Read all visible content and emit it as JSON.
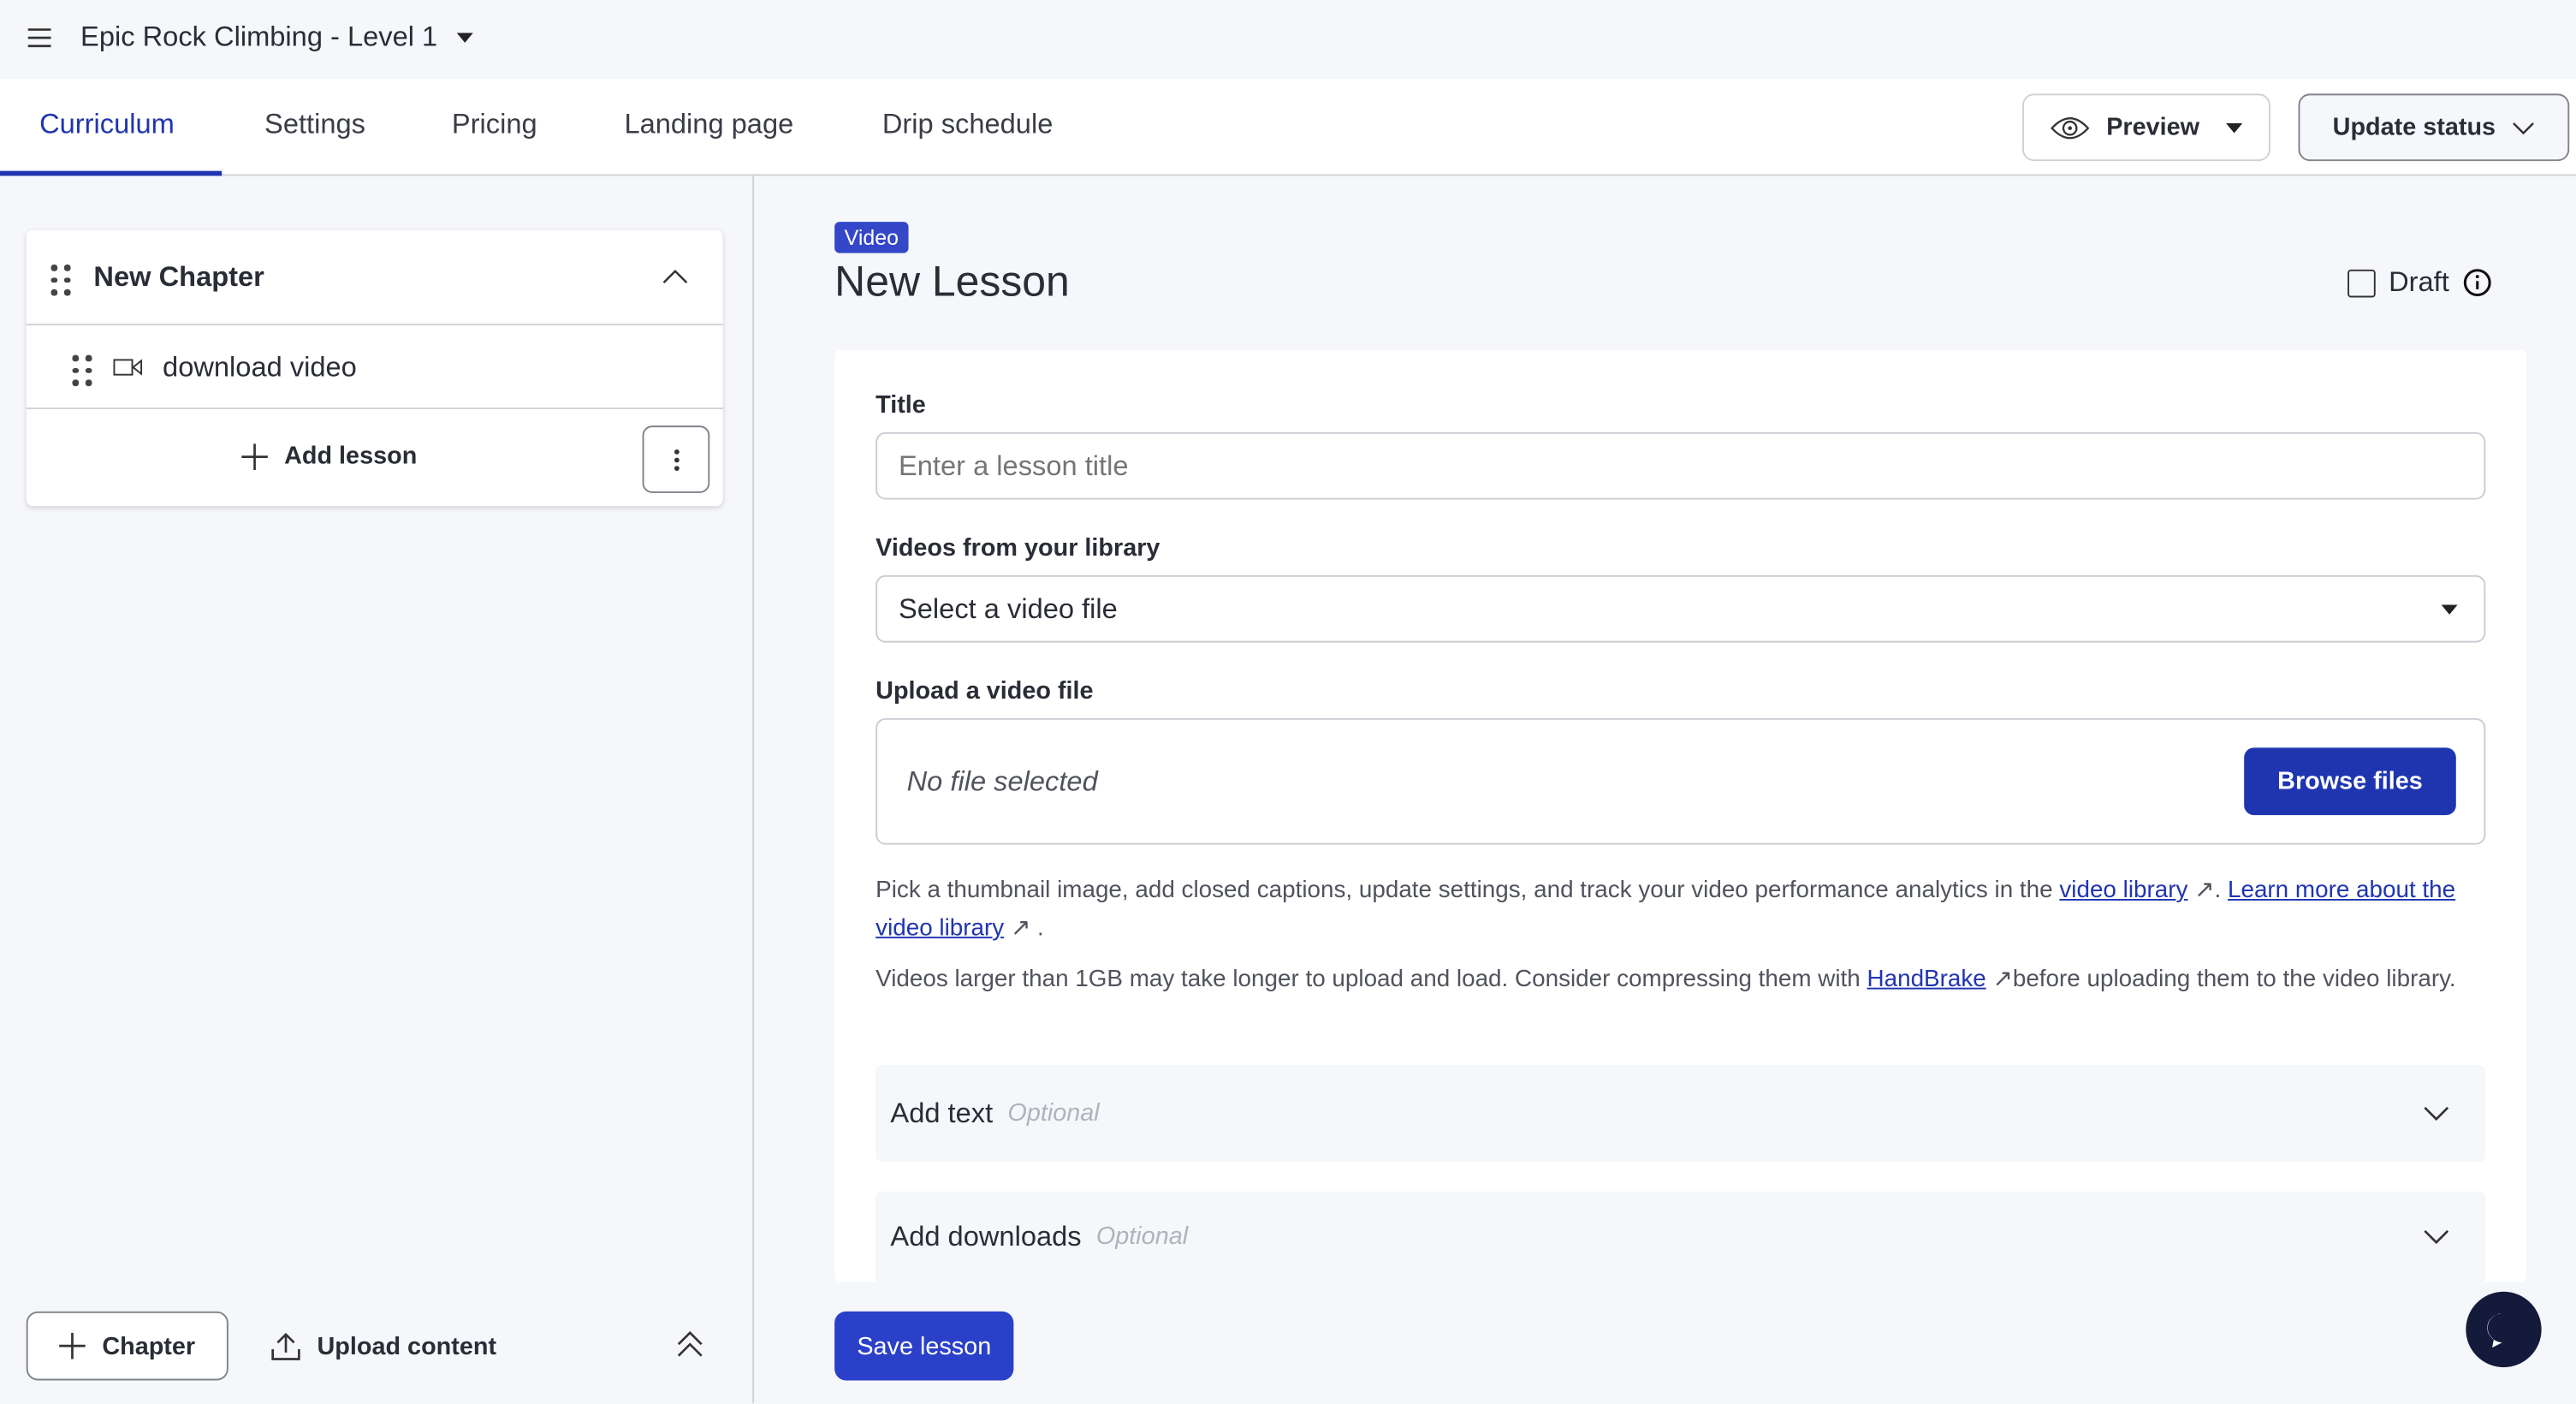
{
  "header": {
    "title": "Epic Rock Climbing - Level 1"
  },
  "tabs": [
    {
      "label": "Curriculum",
      "active": true
    },
    {
      "label": "Settings"
    },
    {
      "label": "Pricing"
    },
    {
      "label": "Landing page"
    },
    {
      "label": "Drip schedule"
    }
  ],
  "actions": {
    "preview": "Preview",
    "update_status": "Update status"
  },
  "sidebar": {
    "chapter": "New Chapter",
    "lessons": [
      {
        "title": "download video",
        "type": "video"
      }
    ],
    "add_lesson": "Add lesson",
    "add_chapter": "Chapter",
    "upload_content": "Upload content"
  },
  "lesson": {
    "badge": "Video",
    "title": "New Lesson",
    "draft_label": "Draft",
    "title_label": "Title",
    "title_placeholder": "Enter a lesson title",
    "library_label": "Videos from your library",
    "library_value": "Select a video file",
    "upload_label": "Upload a video file",
    "no_file": "No file selected",
    "browse": "Browse files",
    "help1_a": "Pick a thumbnail image, add closed captions, update settings, and track your video performance analytics in the ",
    "help1_link1": "video library",
    "help1_b": ". ",
    "help1_link2": "Learn more about the video library",
    "help1_c": ".",
    "help2_a": "Videos larger than 1GB may take longer to upload and load. Consider compressing them with ",
    "help2_link": "HandBrake",
    "help2_b": "before uploading them to the video library.",
    "acc_text": "Add text",
    "acc_downloads": "Add downloads",
    "optional": "Optional",
    "save": "Save lesson"
  },
  "colors": {
    "accent": "#1f35b0",
    "badge": "#3347c8",
    "background": "#f6f7fb"
  }
}
